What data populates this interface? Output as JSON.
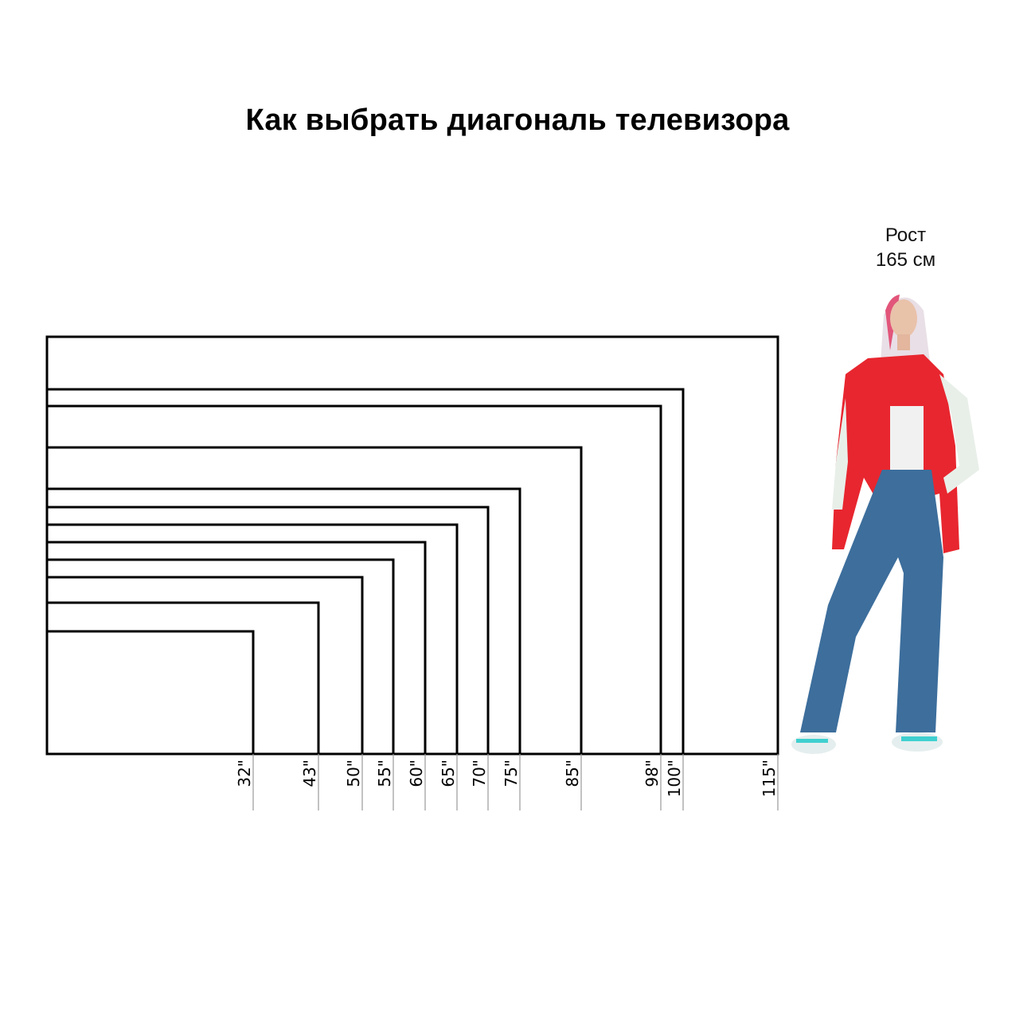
{
  "title": "Как выбрать диагональ телевизора",
  "person": {
    "height_line1": "Рост",
    "height_line2": "165 см",
    "jacket_color": "#e8262f",
    "jeans_color": "#3d6e9c"
  },
  "diagonals": [
    "32\"",
    "43\"",
    "50\"",
    "55\"",
    "60\"",
    "65\"",
    "70\"",
    "75\"",
    "85\"",
    "98\"",
    "100\"",
    "115\""
  ],
  "colors": {
    "outline": "#000000",
    "tick": "#9a9a9a"
  }
}
